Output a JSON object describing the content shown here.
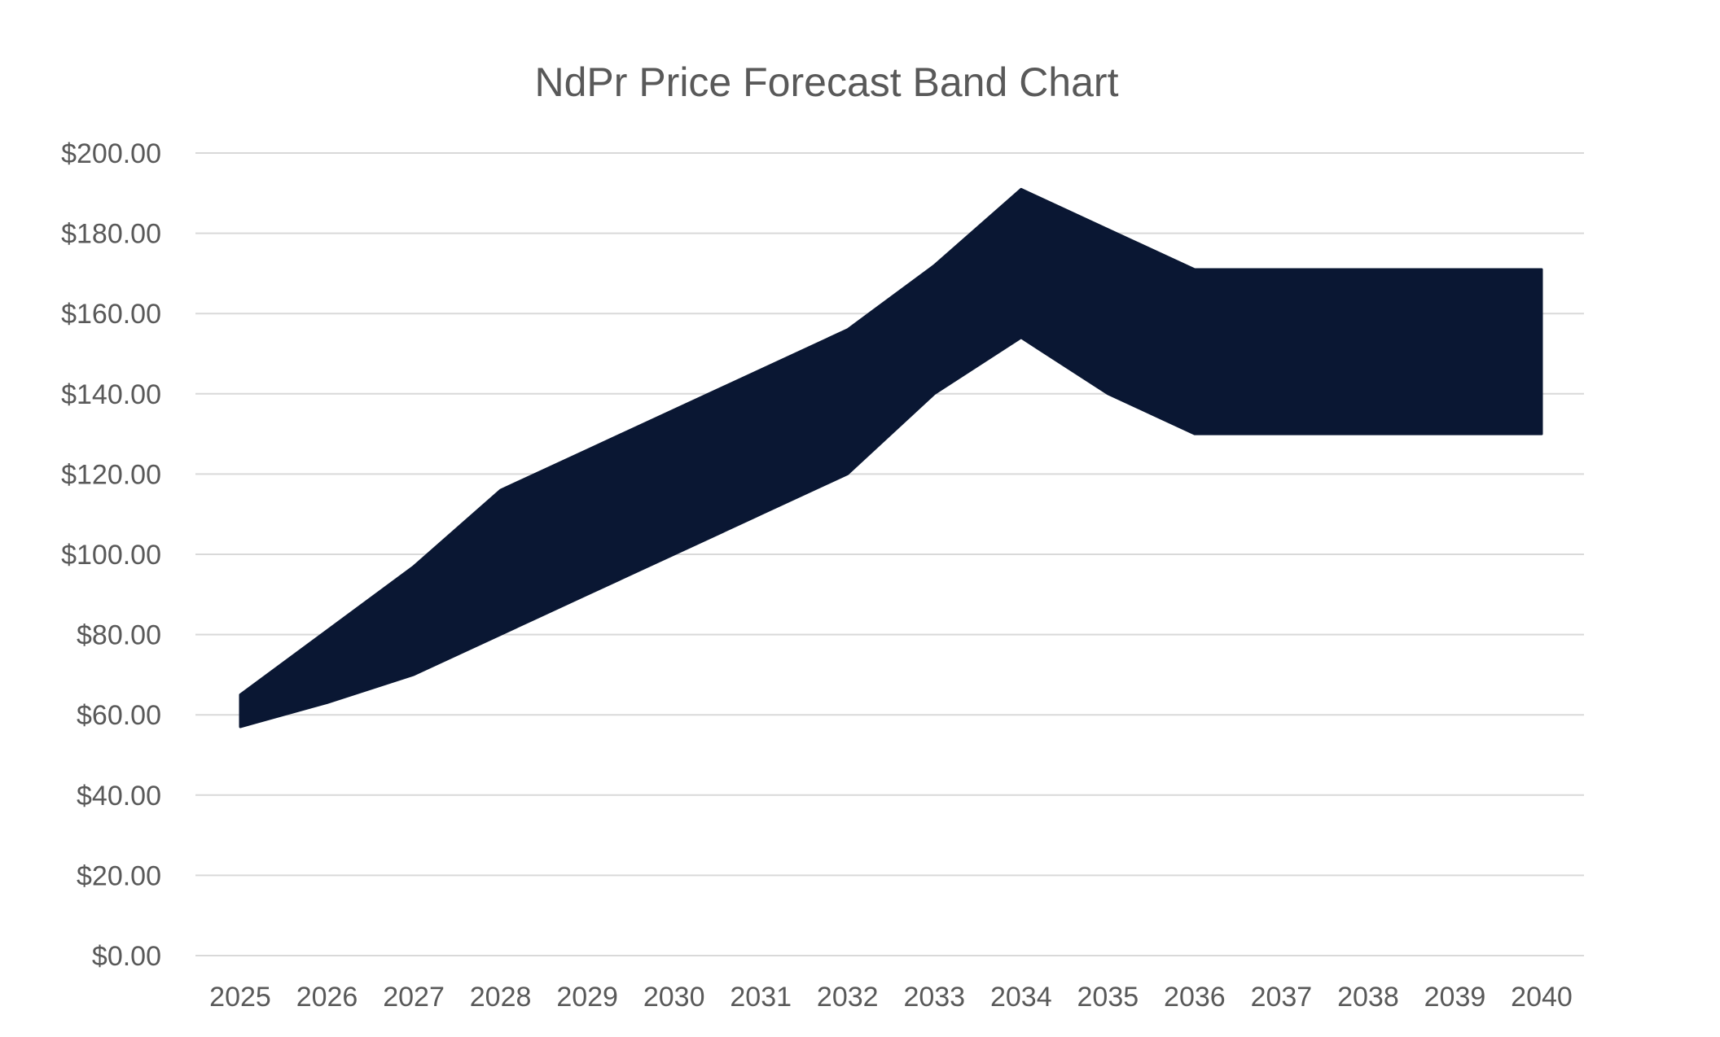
{
  "chart_data": {
    "type": "area",
    "title": "NdPr Price Forecast Band Chart",
    "xlabel": "",
    "ylabel": "",
    "categories": [
      "2025",
      "2026",
      "2027",
      "2028",
      "2029",
      "2030",
      "2031",
      "2032",
      "2033",
      "2034",
      "2035",
      "2036",
      "2037",
      "2038",
      "2039",
      "2040"
    ],
    "y_tick_labels": [
      "$0.00",
      "$20.00",
      "$40.00",
      "$60.00",
      "$80.00",
      "$100.00",
      "$120.00",
      "$140.00",
      "$160.00",
      "$180.00",
      "$200.00"
    ],
    "y_ticks": [
      0,
      20,
      40,
      60,
      80,
      100,
      120,
      140,
      160,
      180,
      200
    ],
    "ylim": [
      0,
      200
    ],
    "grid": true,
    "legend": "none",
    "band": {
      "low": [
        57,
        63,
        70,
        80,
        90,
        100,
        110,
        120,
        140,
        154,
        140,
        130,
        130,
        130,
        130,
        130
      ],
      "high": [
        65,
        81,
        97,
        116,
        126,
        136,
        146,
        156,
        172,
        191,
        181,
        171,
        171,
        171,
        171,
        171
      ]
    },
    "colors": {
      "band_fill": "#0a1733",
      "grid": "#d9d9d9",
      "text": "#595959"
    }
  }
}
